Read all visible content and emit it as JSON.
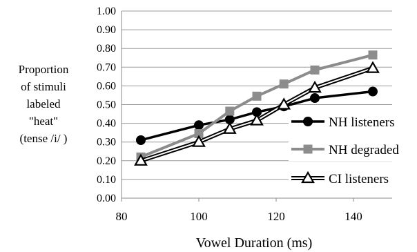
{
  "chart_data": {
    "type": "line",
    "title": "",
    "xlabel": "Vowel Duration (ms)",
    "ylabel_lines": [
      "Proportion",
      "of stimuli",
      "labeled",
      "\"heat\"",
      "(tense /i/ )"
    ],
    "xlim": [
      80,
      150
    ],
    "ylim": [
      0,
      1
    ],
    "x_ticks": [
      "80",
      "100",
      "120",
      "140"
    ],
    "y_ticks": [
      "0.00",
      "0.10",
      "0.20",
      "0.30",
      "0.40",
      "0.50",
      "0.60",
      "0.70",
      "0.80",
      "0.90",
      "1.00"
    ],
    "grid": "horizontal",
    "legend_position": "right",
    "series": [
      {
        "name": "NH listeners",
        "color": "#000000",
        "marker": "circle",
        "points": [
          [
            85,
            0.31
          ],
          [
            100,
            0.39
          ],
          [
            108,
            0.42
          ],
          [
            115,
            0.46
          ],
          [
            122,
            0.49
          ],
          [
            130,
            0.535
          ],
          [
            145,
            0.57
          ]
        ]
      },
      {
        "name": "NH degraded",
        "color": "#8c8c8c",
        "marker": "square",
        "points": [
          [
            85,
            0.22
          ],
          [
            100,
            0.345
          ],
          [
            108,
            0.465
          ],
          [
            115,
            0.545
          ],
          [
            122,
            0.61
          ],
          [
            130,
            0.685
          ],
          [
            145,
            0.765
          ]
        ]
      },
      {
        "name": "CI listeners",
        "color": "#000000",
        "marker": "triangle",
        "points": [
          [
            85,
            0.2
          ],
          [
            100,
            0.3
          ],
          [
            108,
            0.37
          ],
          [
            115,
            0.415
          ],
          [
            122,
            0.5
          ],
          [
            130,
            0.59
          ],
          [
            145,
            0.695
          ]
        ]
      }
    ]
  }
}
